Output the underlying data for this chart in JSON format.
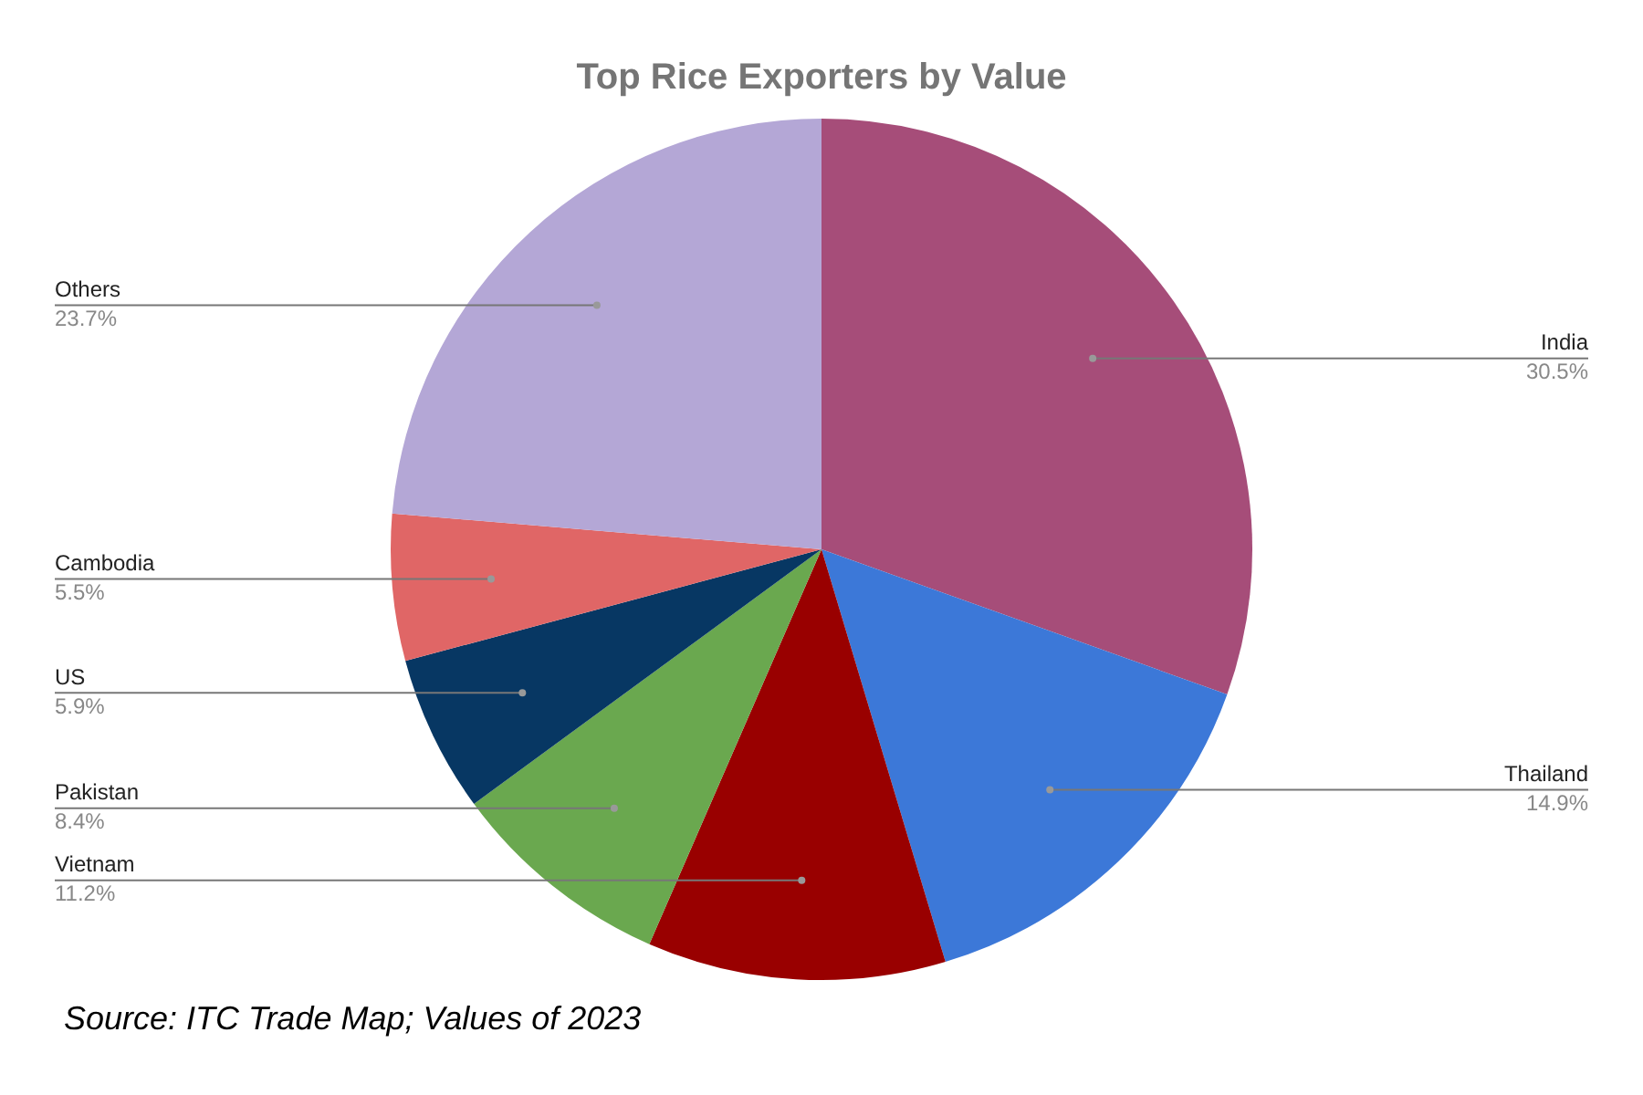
{
  "chart_data": {
    "type": "pie",
    "title": "Top Rice Exporters by Value",
    "categories": [
      "India",
      "Thailand",
      "Vietnam",
      "Pakistan",
      "US",
      "Cambodia",
      "Others"
    ],
    "values": [
      30.5,
      14.9,
      11.2,
      8.4,
      5.9,
      5.5,
      23.7
    ],
    "value_labels": [
      "30.5%",
      "14.9%",
      "11.2%",
      "8.4%",
      "5.9%",
      "5.5%",
      "23.7%"
    ],
    "colors": [
      "#a64d79",
      "#3c78d8",
      "#990000",
      "#6aa84f",
      "#073763",
      "#e06666",
      "#b4a7d6"
    ],
    "legend": false,
    "annotations": [
      "Source: ITC Trade Map; Values of 2023"
    ]
  }
}
